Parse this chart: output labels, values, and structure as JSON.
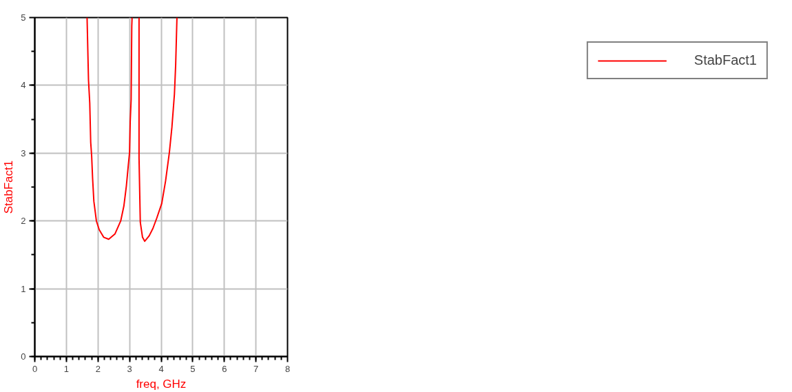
{
  "chart_data": {
    "type": "line",
    "xlabel": "freq, GHz",
    "ylabel": "StabFact1",
    "xlim": [
      0,
      8
    ],
    "ylim": [
      0,
      5
    ],
    "xticks": [
      0,
      1,
      2,
      3,
      4,
      5,
      6,
      7,
      8
    ],
    "yticks": [
      0,
      1,
      2,
      3,
      4,
      5
    ],
    "grid": true,
    "legend": "top right",
    "marker": "none",
    "line_style": "solid",
    "series": [
      {
        "name": "StabFact1",
        "color": "#ff0000",
        "x": [
          1.655,
          1.7,
          1.74,
          1.77,
          1.8,
          1.83,
          1.87,
          1.95,
          2.04,
          2.18,
          2.34,
          2.54,
          2.72,
          2.82,
          2.9,
          2.96,
          3.0,
          3.02,
          3.05,
          3.07,
          3.08,
          3.19,
          3.3,
          3.3,
          3.32,
          3.34,
          3.41,
          3.48,
          3.62,
          3.74,
          3.86,
          4.02,
          4.14,
          4.26,
          4.34,
          4.42,
          4.46,
          4.5
        ],
        "values": [
          5.0,
          4.08,
          3.74,
          3.16,
          2.96,
          2.63,
          2.29,
          2.0,
          1.87,
          1.76,
          1.73,
          1.81,
          2.0,
          2.22,
          2.52,
          2.82,
          3.01,
          3.46,
          3.79,
          4.87,
          5.0,
          null,
          5.0,
          2.93,
          2.45,
          1.98,
          1.76,
          1.7,
          1.78,
          1.89,
          2.04,
          2.26,
          2.59,
          3.01,
          3.38,
          3.87,
          4.31,
          5.0
        ]
      }
    ]
  }
}
